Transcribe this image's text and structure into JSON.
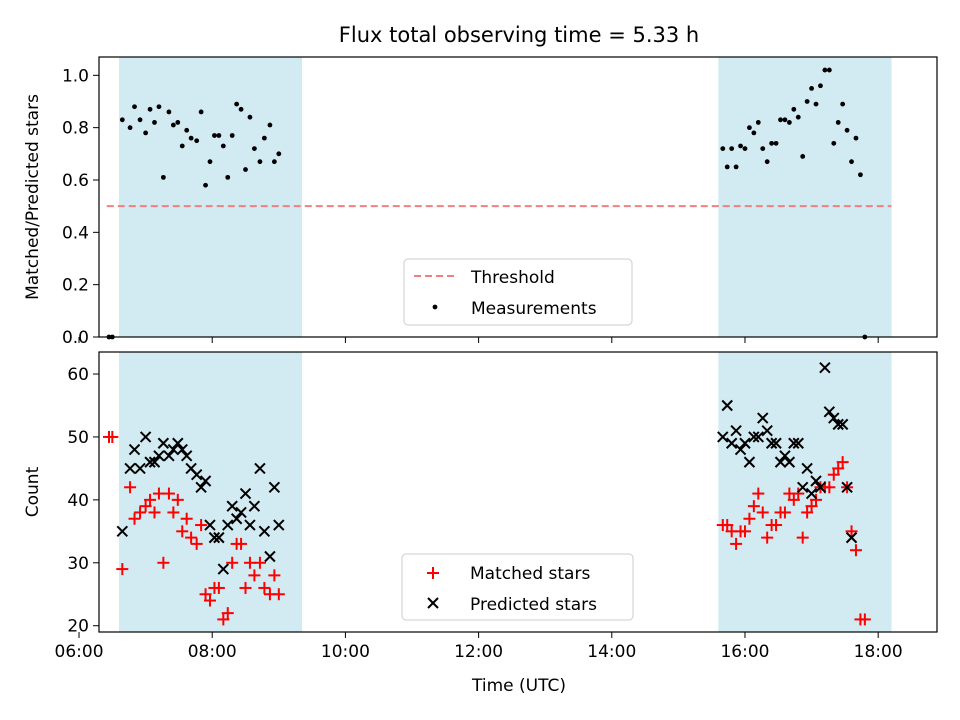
{
  "figure": {
    "title": "Flux total observing time = 5.33 h",
    "xlabel": "Time (UTC)"
  },
  "colors": {
    "shade": "#add8e6",
    "threshold": "#f08080",
    "measurements": "#000000",
    "matched": "#ff0000",
    "predicted": "#000000"
  },
  "chart_data": [
    {
      "type": "scatter",
      "panel": "top",
      "ylabel": "Matched/Predicted stars",
      "xlim": [
        "06:18",
        "18:53"
      ],
      "ylim": [
        0,
        1.07
      ],
      "xticks": [
        "06:00",
        "08:00",
        "10:00",
        "12:00",
        "14:00",
        "16:00",
        "18:00"
      ],
      "yticks": [
        "0.0",
        "0.2",
        "0.4",
        "0.6",
        "0.8",
        "1.0"
      ],
      "shaded_intervals": [
        [
          "06:36",
          "09:21"
        ],
        [
          "15:36",
          "18:12"
        ]
      ],
      "threshold": {
        "name": "Threshold",
        "y": 0.5,
        "x": [
          "06:25",
          "18:12"
        ]
      },
      "legend": {
        "position": "lower center",
        "entries": [
          "Threshold",
          "Measurements"
        ]
      },
      "series": [
        {
          "name": "Measurements",
          "points": [
            [
              "06:27",
              0.0
            ],
            [
              "06:30",
              0.0
            ],
            [
              "06:39",
              0.83
            ],
            [
              "06:46",
              0.8
            ],
            [
              "06:50",
              0.88
            ],
            [
              "06:55",
              0.83
            ],
            [
              "07:00",
              0.78
            ],
            [
              "07:04",
              0.87
            ],
            [
              "07:08",
              0.82
            ],
            [
              "07:12",
              0.88
            ],
            [
              "07:16",
              0.61
            ],
            [
              "07:21",
              0.86
            ],
            [
              "07:25",
              0.81
            ],
            [
              "07:29",
              0.82
            ],
            [
              "07:33",
              0.73
            ],
            [
              "07:37",
              0.79
            ],
            [
              "07:41",
              0.76
            ],
            [
              "07:46",
              0.75
            ],
            [
              "07:50",
              0.86
            ],
            [
              "07:54",
              0.58
            ],
            [
              "07:58",
              0.67
            ],
            [
              "08:02",
              0.77
            ],
            [
              "08:06",
              0.77
            ],
            [
              "08:10",
              0.73
            ],
            [
              "08:14",
              0.61
            ],
            [
              "08:18",
              0.77
            ],
            [
              "08:22",
              0.89
            ],
            [
              "08:26",
              0.87
            ],
            [
              "08:30",
              0.64
            ],
            [
              "08:34",
              0.84
            ],
            [
              "08:38",
              0.72
            ],
            [
              "08:43",
              0.67
            ],
            [
              "08:47",
              0.76
            ],
            [
              "08:52",
              0.81
            ],
            [
              "08:56",
              0.67
            ],
            [
              "09:00",
              0.7
            ],
            [
              "15:40",
              0.72
            ],
            [
              "15:44",
              0.65
            ],
            [
              "15:48",
              0.72
            ],
            [
              "15:52",
              0.65
            ],
            [
              "15:56",
              0.73
            ],
            [
              "16:00",
              0.72
            ],
            [
              "16:04",
              0.8
            ],
            [
              "16:08",
              0.78
            ],
            [
              "16:12",
              0.82
            ],
            [
              "16:16",
              0.72
            ],
            [
              "16:20",
              0.67
            ],
            [
              "16:24",
              0.74
            ],
            [
              "16:28",
              0.74
            ],
            [
              "16:32",
              0.83
            ],
            [
              "16:36",
              0.83
            ],
            [
              "16:40",
              0.82
            ],
            [
              "16:44",
              0.87
            ],
            [
              "16:48",
              0.84
            ],
            [
              "16:52",
              0.69
            ],
            [
              "16:56",
              0.9
            ],
            [
              "17:00",
              0.95
            ],
            [
              "17:04",
              0.89
            ],
            [
              "17:08",
              0.96
            ],
            [
              "17:12",
              1.02
            ],
            [
              "17:16",
              1.02
            ],
            [
              "17:20",
              0.74
            ],
            [
              "17:24",
              0.82
            ],
            [
              "17:28",
              0.89
            ],
            [
              "17:32",
              0.79
            ],
            [
              "17:36",
              0.67
            ],
            [
              "17:40",
              0.76
            ],
            [
              "17:44",
              0.62
            ],
            [
              "17:48",
              0.0
            ]
          ]
        }
      ]
    },
    {
      "type": "scatter",
      "panel": "bottom",
      "ylabel": "Count",
      "xlim": [
        "06:18",
        "18:53"
      ],
      "ylim": [
        19,
        63.5
      ],
      "xticks": [
        "06:00",
        "08:00",
        "10:00",
        "12:00",
        "14:00",
        "16:00",
        "18:00"
      ],
      "yticks": [
        "20",
        "30",
        "40",
        "50",
        "60"
      ],
      "shaded_intervals": [
        [
          "06:36",
          "09:21"
        ],
        [
          "15:36",
          "18:12"
        ]
      ],
      "legend": {
        "position": "lower center",
        "entries": [
          "Matched stars",
          "Predicted stars"
        ]
      },
      "series": [
        {
          "name": "Matched stars",
          "marker": "plus",
          "points": [
            [
              "06:27",
              50
            ],
            [
              "06:30",
              50
            ],
            [
              "06:39",
              29
            ],
            [
              "06:46",
              42
            ],
            [
              "06:50",
              37
            ],
            [
              "06:55",
              38
            ],
            [
              "07:00",
              39
            ],
            [
              "07:04",
              40
            ],
            [
              "07:08",
              38
            ],
            [
              "07:12",
              41
            ],
            [
              "07:16",
              30
            ],
            [
              "07:21",
              41
            ],
            [
              "07:25",
              38
            ],
            [
              "07:29",
              40
            ],
            [
              "07:33",
              35
            ],
            [
              "07:37",
              37
            ],
            [
              "07:41",
              34
            ],
            [
              "07:46",
              33
            ],
            [
              "07:50",
              36
            ],
            [
              "07:54",
              25
            ],
            [
              "07:58",
              24
            ],
            [
              "08:02",
              26
            ],
            [
              "08:06",
              26
            ],
            [
              "08:10",
              21
            ],
            [
              "08:14",
              22
            ],
            [
              "08:18",
              30
            ],
            [
              "08:22",
              33
            ],
            [
              "08:26",
              33
            ],
            [
              "08:30",
              26
            ],
            [
              "08:34",
              30
            ],
            [
              "08:38",
              28
            ],
            [
              "08:43",
              30
            ],
            [
              "08:47",
              26
            ],
            [
              "08:52",
              25
            ],
            [
              "08:56",
              28
            ],
            [
              "09:00",
              25
            ],
            [
              "15:40",
              36
            ],
            [
              "15:44",
              36
            ],
            [
              "15:48",
              35
            ],
            [
              "15:52",
              33
            ],
            [
              "15:56",
              35
            ],
            [
              "16:00",
              35
            ],
            [
              "16:04",
              37
            ],
            [
              "16:08",
              39
            ],
            [
              "16:12",
              41
            ],
            [
              "16:16",
              38
            ],
            [
              "16:20",
              34
            ],
            [
              "16:24",
              36
            ],
            [
              "16:28",
              36
            ],
            [
              "16:32",
              38
            ],
            [
              "16:36",
              38
            ],
            [
              "16:40",
              41
            ],
            [
              "16:44",
              40
            ],
            [
              "16:48",
              41
            ],
            [
              "16:52",
              34
            ],
            [
              "16:56",
              38
            ],
            [
              "17:00",
              39
            ],
            [
              "17:04",
              40
            ],
            [
              "17:08",
              42
            ],
            [
              "17:12",
              42
            ],
            [
              "17:16",
              42
            ],
            [
              "17:20",
              44
            ],
            [
              "17:24",
              45
            ],
            [
              "17:28",
              46
            ],
            [
              "17:32",
              42
            ],
            [
              "17:36",
              35
            ],
            [
              "17:40",
              32
            ],
            [
              "17:44",
              21
            ],
            [
              "17:48",
              21
            ]
          ]
        },
        {
          "name": "Predicted stars",
          "marker": "x",
          "points": [
            [
              "06:39",
              35
            ],
            [
              "06:46",
              45
            ],
            [
              "06:50",
              48
            ],
            [
              "06:55",
              45
            ],
            [
              "07:00",
              50
            ],
            [
              "07:04",
              46
            ],
            [
              "07:08",
              46
            ],
            [
              "07:12",
              47
            ],
            [
              "07:16",
              49
            ],
            [
              "07:21",
              47
            ],
            [
              "07:25",
              48
            ],
            [
              "07:29",
              49
            ],
            [
              "07:33",
              48
            ],
            [
              "07:37",
              47
            ],
            [
              "07:41",
              45
            ],
            [
              "07:46",
              44
            ],
            [
              "07:50",
              42
            ],
            [
              "07:54",
              43
            ],
            [
              "07:58",
              36
            ],
            [
              "08:02",
              34
            ],
            [
              "08:06",
              34
            ],
            [
              "08:10",
              29
            ],
            [
              "08:14",
              36
            ],
            [
              "08:18",
              39
            ],
            [
              "08:22",
              37
            ],
            [
              "08:26",
              38
            ],
            [
              "08:30",
              41
            ],
            [
              "08:34",
              36
            ],
            [
              "08:38",
              39
            ],
            [
              "08:43",
              45
            ],
            [
              "08:47",
              35
            ],
            [
              "08:52",
              31
            ],
            [
              "08:56",
              42
            ],
            [
              "09:00",
              36
            ],
            [
              "15:40",
              50
            ],
            [
              "15:44",
              55
            ],
            [
              "15:48",
              49
            ],
            [
              "15:52",
              51
            ],
            [
              "15:56",
              48
            ],
            [
              "16:00",
              49
            ],
            [
              "16:04",
              46
            ],
            [
              "16:08",
              50
            ],
            [
              "16:12",
              50
            ],
            [
              "16:16",
              53
            ],
            [
              "16:20",
              51
            ],
            [
              "16:24",
              49
            ],
            [
              "16:28",
              49
            ],
            [
              "16:32",
              46
            ],
            [
              "16:36",
              47
            ],
            [
              "16:40",
              46
            ],
            [
              "16:44",
              49
            ],
            [
              "16:48",
              49
            ],
            [
              "16:52",
              42
            ],
            [
              "16:56",
              45
            ],
            [
              "17:00",
              41
            ],
            [
              "17:04",
              43
            ],
            [
              "17:08",
              42
            ],
            [
              "17:12",
              61
            ],
            [
              "17:16",
              54
            ],
            [
              "17:20",
              53
            ],
            [
              "17:24",
              52
            ],
            [
              "17:28",
              52
            ],
            [
              "17:32",
              42
            ],
            [
              "17:36",
              34
            ]
          ]
        }
      ]
    }
  ]
}
